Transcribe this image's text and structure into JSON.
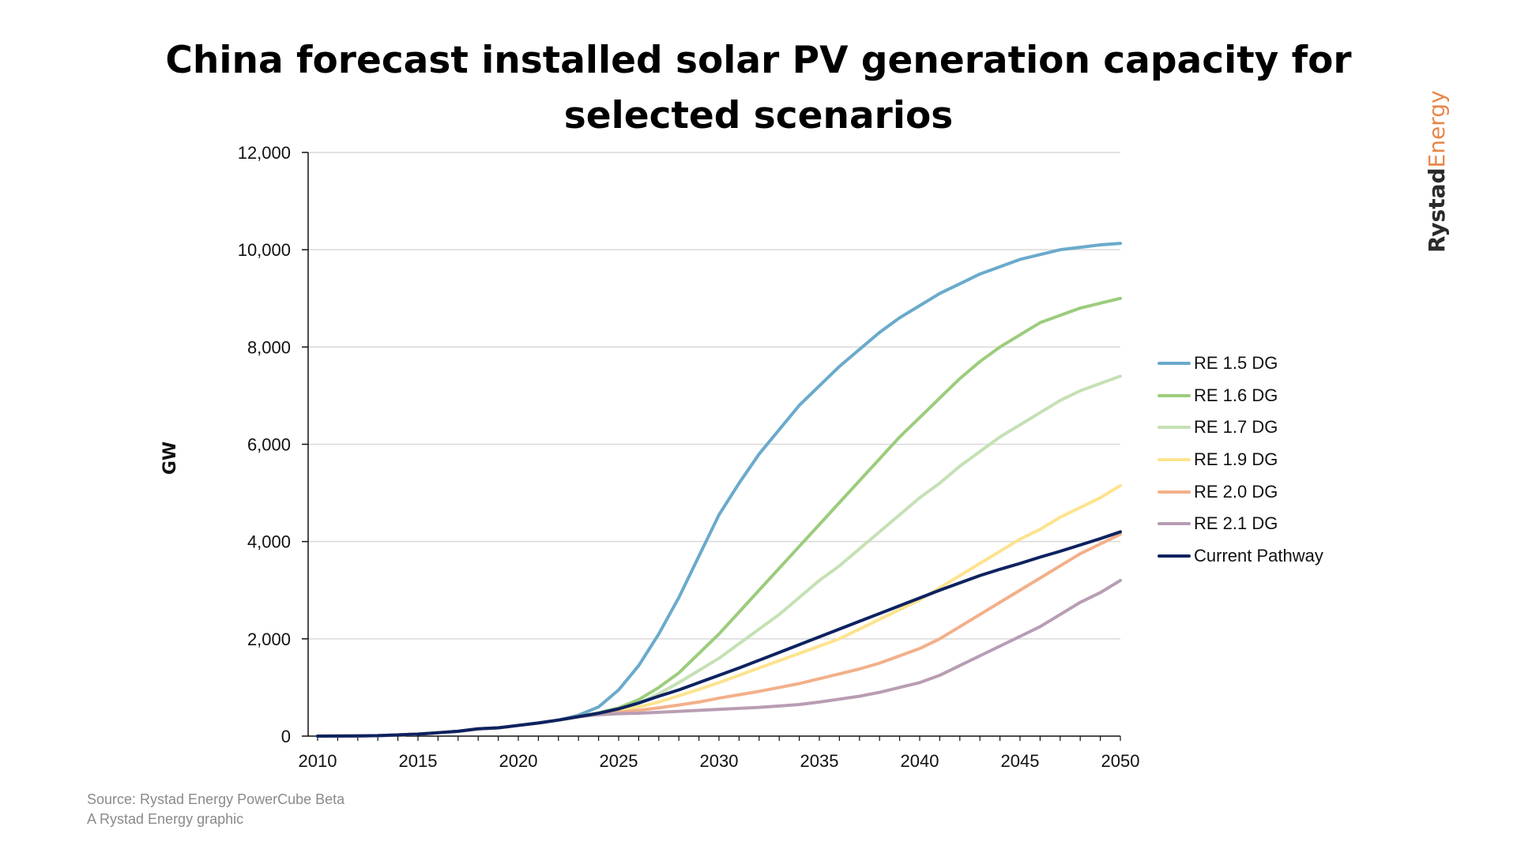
{
  "title_line1": "China forecast installed solar PV generation capacity for",
  "title_line2": "selected scenarios",
  "brand": {
    "part1": "Rystad",
    "part2": "Energy"
  },
  "footer": {
    "source": "Source: Rystad Energy PowerCube Beta",
    "credit": "A Rystad Energy graphic"
  },
  "chart_data": {
    "type": "line",
    "title": "China forecast installed solar PV generation capacity for selected scenarios",
    "xlabel": "",
    "ylabel": "GW",
    "xlim": [
      2010,
      2050
    ],
    "ylim": [
      0,
      12000
    ],
    "grid": "horizontal",
    "legend_position": "right",
    "x_ticks": [
      "2010",
      "2015",
      "2020",
      "2025",
      "2030",
      "2035",
      "2040",
      "2045",
      "2050"
    ],
    "y_ticks": [
      "0",
      "2,000",
      "4,000",
      "6,000",
      "8,000",
      "10,000",
      "12,000"
    ],
    "x": [
      2010,
      2011,
      2012,
      2013,
      2014,
      2015,
      2016,
      2017,
      2018,
      2019,
      2020,
      2021,
      2022,
      2023,
      2024,
      2025,
      2026,
      2027,
      2028,
      2029,
      2030,
      2031,
      2032,
      2033,
      2034,
      2035,
      2036,
      2037,
      2038,
      2039,
      2040,
      2041,
      2042,
      2043,
      2044,
      2045,
      2046,
      2047,
      2048,
      2049,
      2050
    ],
    "series": [
      {
        "name": "RE 1.5 DG",
        "color": "#6aaacb",
        "values": [
          0,
          3,
          5,
          10,
          25,
          40,
          70,
          100,
          150,
          170,
          220,
          270,
          330,
          430,
          600,
          950,
          1450,
          2100,
          2850,
          3700,
          4550,
          5200,
          5800,
          6300,
          6800,
          7200,
          7600,
          7950,
          8300,
          8600,
          8850,
          9100,
          9300,
          9500,
          9650,
          9800,
          9900,
          10000,
          10050,
          10100,
          10130
        ]
      },
      {
        "name": "RE 1.6 DG",
        "color": "#9ccc7c",
        "values": [
          0,
          3,
          5,
          10,
          25,
          40,
          70,
          100,
          150,
          170,
          220,
          270,
          330,
          400,
          480,
          580,
          750,
          1000,
          1300,
          1700,
          2100,
          2550,
          3000,
          3450,
          3900,
          4350,
          4800,
          5250,
          5700,
          6150,
          6550,
          6950,
          7350,
          7700,
          8000,
          8250,
          8500,
          8650,
          8800,
          8900,
          9000
        ]
      },
      {
        "name": "RE 1.7 DG",
        "color": "#c5e1b5",
        "values": [
          0,
          3,
          5,
          10,
          25,
          40,
          70,
          100,
          150,
          170,
          220,
          270,
          330,
          400,
          460,
          550,
          680,
          870,
          1100,
          1350,
          1600,
          1900,
          2200,
          2500,
          2850,
          3200,
          3500,
          3850,
          4200,
          4550,
          4900,
          5200,
          5550,
          5850,
          6150,
          6400,
          6650,
          6900,
          7100,
          7250,
          7400
        ]
      },
      {
        "name": "RE 1.9 DG",
        "color": "#fde38e",
        "values": [
          0,
          3,
          5,
          10,
          25,
          40,
          70,
          100,
          150,
          170,
          220,
          270,
          330,
          400,
          450,
          520,
          600,
          700,
          830,
          960,
          1100,
          1250,
          1400,
          1550,
          1700,
          1850,
          2000,
          2200,
          2400,
          2600,
          2800,
          3050,
          3300,
          3550,
          3800,
          4050,
          4250,
          4500,
          4700,
          4900,
          5150
        ]
      },
      {
        "name": "RE 2.0 DG",
        "color": "#f2b08a",
        "values": [
          0,
          3,
          5,
          10,
          25,
          40,
          70,
          100,
          150,
          170,
          220,
          270,
          330,
          400,
          450,
          490,
          530,
          580,
          640,
          700,
          780,
          850,
          920,
          1000,
          1080,
          1180,
          1280,
          1380,
          1500,
          1650,
          1800,
          2000,
          2250,
          2500,
          2750,
          3000,
          3250,
          3500,
          3750,
          3950,
          4150
        ]
      },
      {
        "name": "RE 2.1 DG",
        "color": "#b89db3",
        "values": [
          0,
          3,
          5,
          10,
          25,
          40,
          70,
          100,
          150,
          170,
          220,
          270,
          330,
          400,
          440,
          460,
          470,
          490,
          510,
          530,
          550,
          570,
          590,
          620,
          650,
          700,
          760,
          820,
          900,
          1000,
          1100,
          1250,
          1450,
          1650,
          1850,
          2050,
          2250,
          2500,
          2750,
          2950,
          3200
        ]
      },
      {
        "name": "Current Pathway",
        "color": "#0d2260",
        "values": [
          0,
          3,
          5,
          10,
          25,
          40,
          70,
          100,
          150,
          170,
          220,
          270,
          330,
          400,
          470,
          560,
          680,
          820,
          950,
          1100,
          1250,
          1400,
          1560,
          1720,
          1880,
          2040,
          2200,
          2360,
          2520,
          2680,
          2840,
          3000,
          3150,
          3300,
          3430,
          3550,
          3680,
          3800,
          3930,
          4060,
          4200
        ]
      }
    ]
  }
}
